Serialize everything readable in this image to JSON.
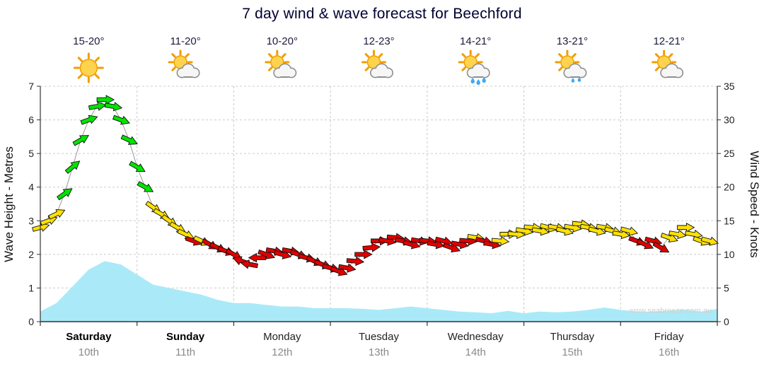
{
  "title": "7 day wind & wave forecast for Beechford",
  "watermark": "www.seabreeze.com.au",
  "days": [
    {
      "name": "Saturday",
      "date": "10th",
      "temp": "15-20°",
      "icon": "sunny",
      "bold": true
    },
    {
      "name": "Sunday",
      "date": "11th",
      "temp": "11-20°",
      "icon": "sun-cloud",
      "bold": true
    },
    {
      "name": "Monday",
      "date": "12th",
      "temp": "10-20°",
      "icon": "sun-cloud",
      "bold": false
    },
    {
      "name": "Tuesday",
      "date": "13th",
      "temp": "12-23°",
      "icon": "sun-cloud",
      "bold": false
    },
    {
      "name": "Wednesday",
      "date": "14th",
      "temp": "14-21°",
      "icon": "sun-cloud-showers",
      "bold": false
    },
    {
      "name": "Thursday",
      "date": "15th",
      "temp": "13-21°",
      "icon": "sun-cloud-drizzle",
      "bold": false
    },
    {
      "name": "Friday",
      "date": "16th",
      "temp": "12-21°",
      "icon": "sun-cloud",
      "bold": false
    }
  ],
  "chart_data": {
    "type": "line",
    "title": "7 day wind & wave forecast for Beechford",
    "x_unit": "hours from chart start (Saturday 00:00 = 0)",
    "x_range": [
      0,
      168
    ],
    "grid": true,
    "left_axis": {
      "label": "Wave Height - Metres",
      "range": [
        0,
        7
      ],
      "ticks": [
        0,
        1,
        2,
        3,
        4,
        5,
        6,
        7
      ]
    },
    "right_axis": {
      "label": "Wind Speed - Knots",
      "range": [
        0,
        35
      ],
      "ticks": [
        0,
        5,
        10,
        15,
        20,
        25,
        30,
        35
      ]
    },
    "wave_fill": "#aaeaf8",
    "wind_colors": {
      "G": "#00e400",
      "Y": "#ffe100",
      "R": "#e00000"
    },
    "wave_height_m": {
      "x": [
        0,
        4,
        8,
        12,
        16,
        20,
        24,
        28,
        32,
        36,
        40,
        44,
        48,
        52,
        56,
        60,
        64,
        68,
        72,
        76,
        80,
        84,
        88,
        92,
        96,
        100,
        104,
        108,
        112,
        116,
        120,
        124,
        128,
        132,
        136,
        140,
        144,
        148,
        152,
        156,
        160,
        164,
        168
      ],
      "y": [
        0.3,
        0.55,
        1.05,
        1.55,
        1.8,
        1.7,
        1.4,
        1.1,
        1.0,
        0.9,
        0.8,
        0.65,
        0.55,
        0.55,
        0.5,
        0.45,
        0.45,
        0.4,
        0.4,
        0.4,
        0.38,
        0.35,
        0.4,
        0.45,
        0.4,
        0.35,
        0.3,
        0.28,
        0.25,
        0.32,
        0.25,
        0.3,
        0.28,
        0.3,
        0.35,
        0.42,
        0.35,
        0.3,
        0.3,
        0.33,
        0.36,
        0.3,
        0.38
      ]
    },
    "wind_knots_points": [
      [
        0,
        14,
        "Y",
        -15
      ],
      [
        2,
        15,
        "Y",
        -20
      ],
      [
        4,
        16,
        "Y",
        -25
      ],
      [
        6,
        19,
        "G",
        -35
      ],
      [
        8,
        23,
        "G",
        -40
      ],
      [
        10,
        27,
        "G",
        -30
      ],
      [
        12,
        30,
        "G",
        -20
      ],
      [
        14,
        32,
        "G",
        -10
      ],
      [
        16,
        33,
        "G",
        0
      ],
      [
        18,
        32,
        "G",
        10
      ],
      [
        20,
        30,
        "G",
        20
      ],
      [
        22,
        27,
        "G",
        25
      ],
      [
        24,
        23,
        "G",
        30
      ],
      [
        26,
        20,
        "G",
        30
      ],
      [
        28,
        17,
        "Y",
        35
      ],
      [
        30,
        16,
        "Y",
        30
      ],
      [
        32,
        15,
        "Y",
        35
      ],
      [
        34,
        14,
        "Y",
        30
      ],
      [
        36,
        13,
        "Y",
        25
      ],
      [
        38,
        12,
        "R",
        20
      ],
      [
        40,
        12,
        "Y",
        25
      ],
      [
        42,
        11.5,
        "R",
        30
      ],
      [
        44,
        11,
        "R",
        25
      ],
      [
        46,
        10.5,
        "R",
        20
      ],
      [
        48,
        10,
        "R",
        30
      ],
      [
        50,
        9,
        "R",
        200
      ],
      [
        52,
        8.5,
        "R",
        190
      ],
      [
        54,
        9.5,
        "R",
        180
      ],
      [
        56,
        10,
        "R",
        20
      ],
      [
        58,
        10.5,
        "R",
        10
      ],
      [
        60,
        10,
        "R",
        15
      ],
      [
        62,
        10.5,
        "R",
        10
      ],
      [
        64,
        10,
        "R",
        20
      ],
      [
        66,
        9.5,
        "R",
        15
      ],
      [
        68,
        9,
        "R",
        25
      ],
      [
        70,
        8.5,
        "R",
        20
      ],
      [
        72,
        8,
        "R",
        15
      ],
      [
        74,
        7.5,
        "R",
        20
      ],
      [
        76,
        8,
        "R",
        10
      ],
      [
        78,
        9,
        "R",
        5
      ],
      [
        80,
        10,
        "R",
        0
      ],
      [
        82,
        11,
        "R",
        -5
      ],
      [
        84,
        12,
        "R",
        0
      ],
      [
        86,
        12,
        "R",
        10
      ],
      [
        88,
        12.5,
        "R",
        5
      ],
      [
        90,
        12,
        "R",
        10
      ],
      [
        92,
        11.5,
        "R",
        15
      ],
      [
        94,
        12,
        "R",
        10
      ],
      [
        96,
        12,
        "R",
        5
      ],
      [
        98,
        11.5,
        "R",
        10
      ],
      [
        100,
        12,
        "R",
        15
      ],
      [
        102,
        11,
        "R",
        20
      ],
      [
        104,
        11.5,
        "R",
        10
      ],
      [
        106,
        12,
        "R",
        5
      ],
      [
        108,
        12.5,
        "Y",
        10
      ],
      [
        110,
        12,
        "R",
        15
      ],
      [
        112,
        11.5,
        "R",
        10
      ],
      [
        114,
        12,
        "Y",
        5
      ],
      [
        116,
        13,
        "Y",
        0
      ],
      [
        118,
        13,
        "Y",
        5
      ],
      [
        120,
        13.5,
        "Y",
        10
      ],
      [
        122,
        14,
        "Y",
        5
      ],
      [
        124,
        13.5,
        "Y",
        10
      ],
      [
        126,
        14,
        "Y",
        15
      ],
      [
        128,
        14,
        "Y",
        10
      ],
      [
        130,
        13.5,
        "Y",
        15
      ],
      [
        132,
        14,
        "Y",
        10
      ],
      [
        134,
        14.5,
        "Y",
        5
      ],
      [
        136,
        14,
        "Y",
        10
      ],
      [
        138,
        13.5,
        "Y",
        15
      ],
      [
        140,
        14,
        "Y",
        10
      ],
      [
        142,
        13.5,
        "Y",
        15
      ],
      [
        144,
        13,
        "Y",
        10
      ],
      [
        146,
        13.5,
        "Y",
        15
      ],
      [
        148,
        12,
        "R",
        20
      ],
      [
        150,
        11.5,
        "R",
        25
      ],
      [
        152,
        12,
        "R",
        15
      ],
      [
        154,
        11,
        "R",
        30
      ],
      [
        156,
        12.5,
        "Y",
        20
      ],
      [
        158,
        13,
        "Y",
        10
      ],
      [
        160,
        14,
        "Y",
        0
      ],
      [
        162,
        13,
        "Y",
        10
      ],
      [
        164,
        12,
        "Y",
        20
      ],
      [
        166,
        12,
        "Y",
        15
      ]
    ]
  }
}
